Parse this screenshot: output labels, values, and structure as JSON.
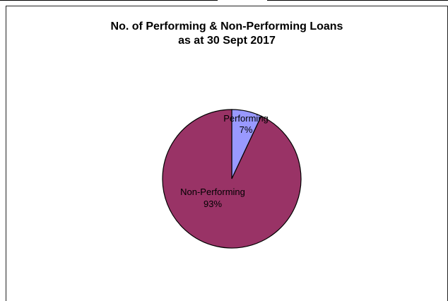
{
  "chart_data": {
    "type": "pie",
    "title": [
      "No. of Performing & Non-Performing Loans",
      "as at 30 Sept 2017"
    ],
    "slices": [
      {
        "label": "Performing",
        "percent": "7%",
        "value": 7,
        "color": "#9999ff"
      },
      {
        "label": "Non-Performing",
        "percent": "93%",
        "value": 93,
        "color": "#993366"
      }
    ],
    "legend": "none"
  }
}
